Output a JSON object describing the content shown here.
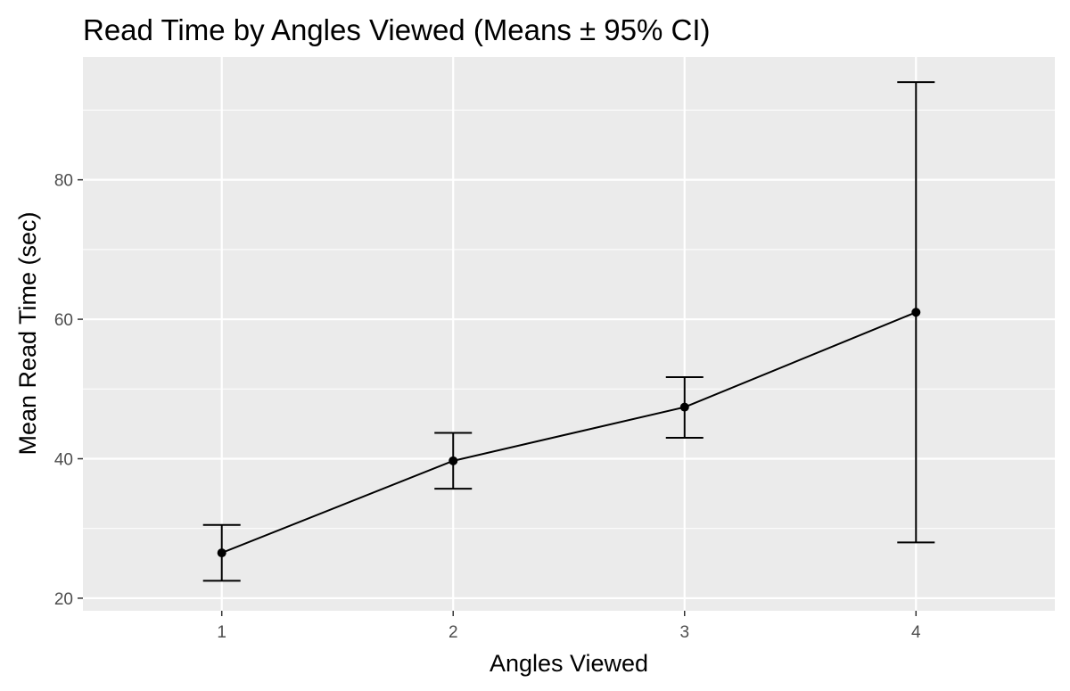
{
  "chart_data": {
    "type": "line",
    "title": "Read Time by Angles Viewed (Means ± 95% CI)",
    "xlabel": "Angles Viewed",
    "ylabel": "Mean Read Time (sec)",
    "x": [
      1,
      2,
      3,
      4
    ],
    "x_tick_labels": [
      "1",
      "2",
      "3",
      "4"
    ],
    "xlim": [
      0.4,
      4.6
    ],
    "ylim": [
      18.2,
      97.6
    ],
    "y_ticks": [
      20,
      40,
      60,
      80
    ],
    "y_tick_labels": [
      "20",
      "40",
      "60",
      "80"
    ],
    "y_minor_ticks": [
      30,
      50,
      70,
      90
    ],
    "grid": true,
    "panel_background": "#ebebeb",
    "grid_color": "#ffffff",
    "series": [
      {
        "name": "Mean Read Time",
        "color": "#000000",
        "values": [
          26.5,
          39.7,
          47.4,
          61.0
        ],
        "ci_lower": [
          22.5,
          35.7,
          43.0,
          28.0
        ],
        "ci_upper": [
          30.5,
          43.7,
          51.7,
          94.0
        ]
      }
    ]
  }
}
